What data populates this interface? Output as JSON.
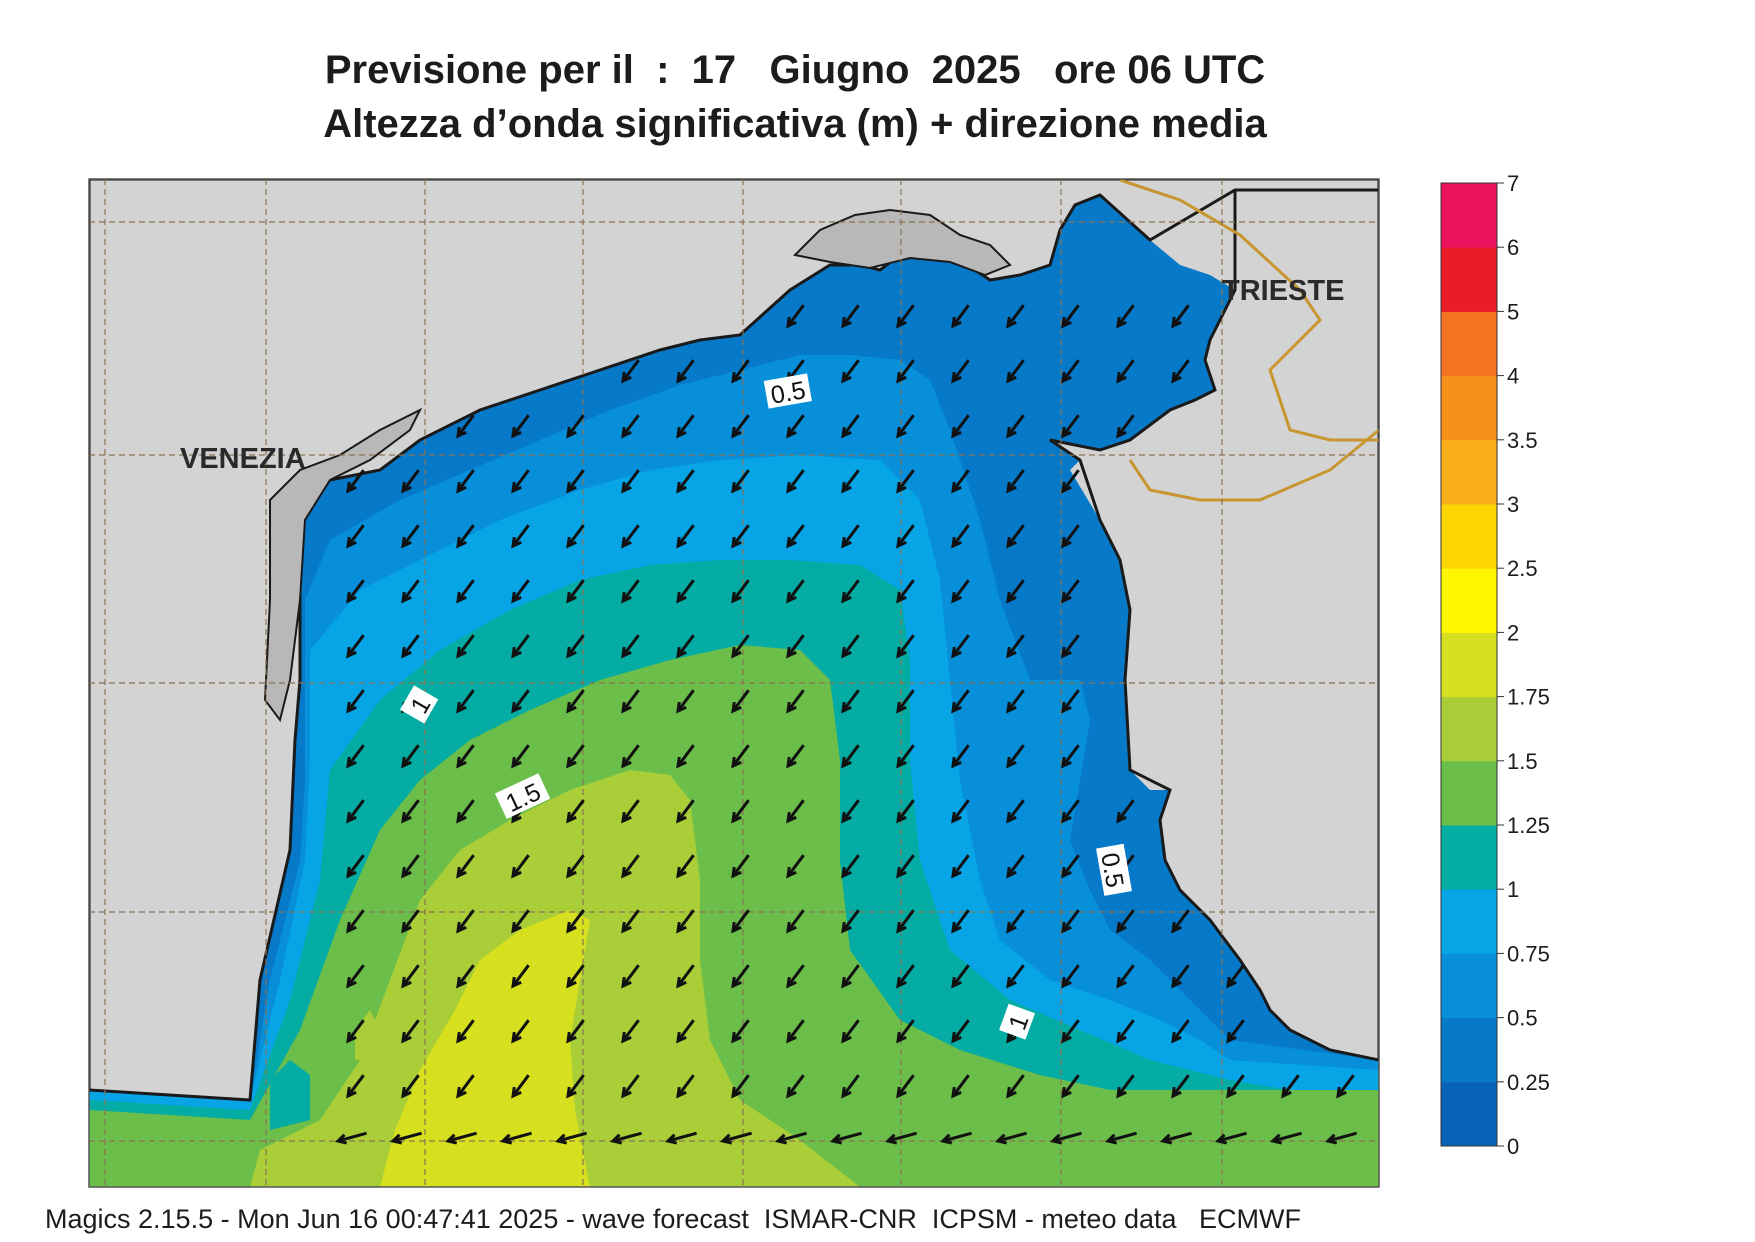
{
  "header": {
    "title_line1": "Previsione per il  :  17   Giugno  2025   ore 06 UTC",
    "title_line2": "Altezza d’onda significativa (m) + direzione media"
  },
  "map": {
    "cities": [
      {
        "name": "VENEZIA"
      },
      {
        "name": "TRIESTE"
      }
    ],
    "contour_labels": [
      "0.5",
      "1",
      "1.5",
      "0.5",
      "1"
    ],
    "arrow_direction": "south-west",
    "land_color": "#d3d3d3",
    "border_color": "#c8962e"
  },
  "colorbar": {
    "ticks": [
      "0",
      "0.25",
      "0.5",
      "0.75",
      "1",
      "1.25",
      "1.5",
      "1.75",
      "2",
      "2.5",
      "3",
      "3.5",
      "4",
      "5",
      "6",
      "7"
    ],
    "colors": [
      "#0762ba",
      "#0779c9",
      "#078fd9",
      "#07a4e6",
      "#04aca4",
      "#6cbe4a",
      "#a9ce38",
      "#d6e01e",
      "#fff700",
      "#fdd503",
      "#fbae1b",
      "#f8901c",
      "#f47221",
      "#ea1c27",
      "#ec145c"
    ]
  },
  "footer": {
    "text": "Magics 2.15.5 - Mon Jun 16 00:47:41 2025 - wave forecast  ISMAR-CNR  ICPSM - meteo data   ECMWF"
  }
}
